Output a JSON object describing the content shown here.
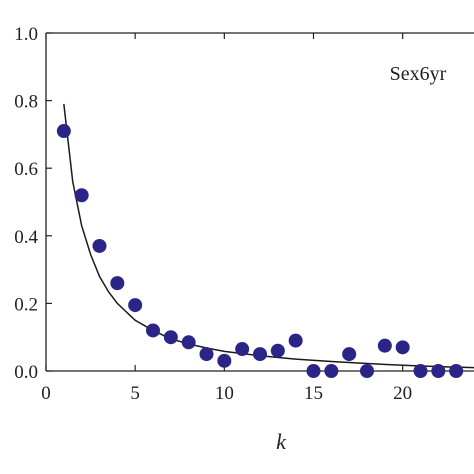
{
  "chart_data": {
    "type": "scatter",
    "xlabel": "k",
    "ylabel": "",
    "xlim": [
      0,
      24
    ],
    "ylim": [
      0,
      1
    ],
    "xticks": [
      0,
      5,
      10,
      15,
      20
    ],
    "xtick_labels": [
      "0",
      "5",
      "10",
      "15",
      "20"
    ],
    "yticks": [
      0,
      0.2,
      0.4,
      0.6,
      0.8,
      1.0
    ],
    "ytick_labels": [
      "0.0",
      "0.2",
      "0.4",
      "0.6",
      "0.8",
      "1.0"
    ],
    "grid": false,
    "annotation": "Sex6yr",
    "annotation_position": "top-right",
    "marker_color": "#2b2588",
    "line_color": "#1a1a1a",
    "series": [
      {
        "kind": "points",
        "x": [
          1,
          2,
          3,
          4,
          5,
          6,
          7,
          8,
          9,
          10,
          11,
          12,
          13,
          14,
          15,
          16,
          17,
          18,
          19,
          20,
          21,
          22,
          23
        ],
        "y": [
          0.71,
          0.52,
          0.37,
          0.26,
          0.195,
          0.12,
          0.1,
          0.085,
          0.05,
          0.03,
          0.065,
          0.05,
          0.06,
          0.09,
          0.0,
          0.0,
          0.05,
          0.0,
          0.075,
          0.07,
          0.0,
          0.0,
          0.0
        ]
      },
      {
        "kind": "line",
        "x": [
          1,
          1.5,
          2,
          2.5,
          3,
          3.5,
          4,
          5,
          6,
          7,
          8,
          9,
          10,
          12,
          14,
          16,
          18,
          20,
          22,
          24
        ],
        "y": [
          0.79,
          0.56,
          0.43,
          0.345,
          0.28,
          0.235,
          0.2,
          0.15,
          0.12,
          0.095,
          0.08,
          0.068,
          0.058,
          0.045,
          0.035,
          0.028,
          0.022,
          0.017,
          0.013,
          0.01
        ]
      }
    ]
  }
}
